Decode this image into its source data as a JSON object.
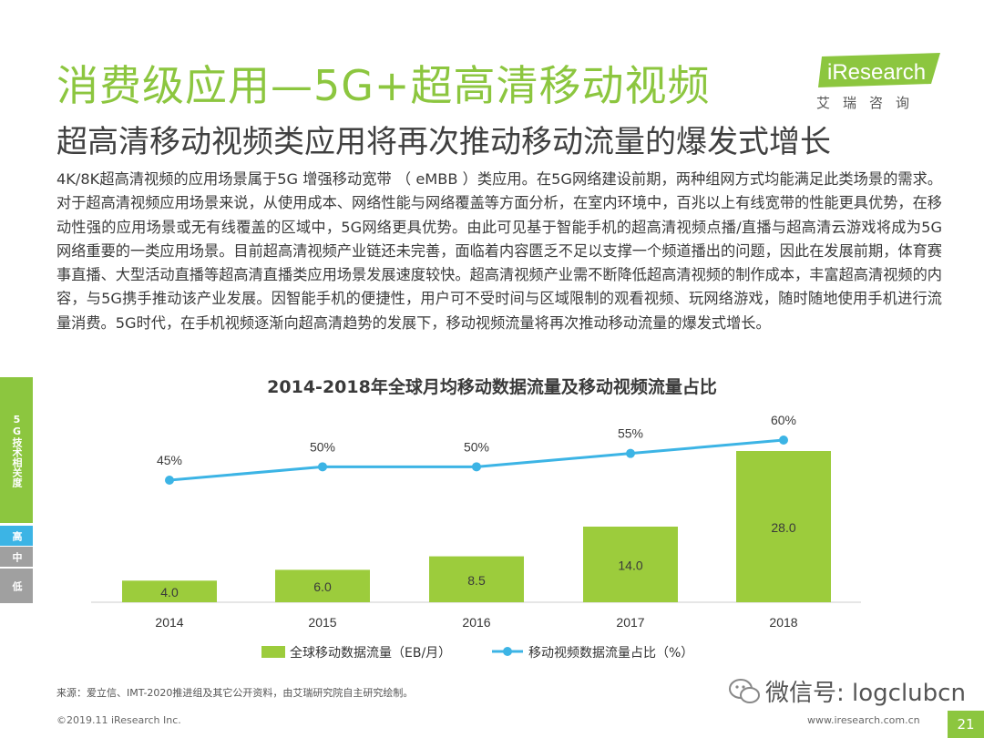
{
  "header": {
    "title": "消费级应用—5G+超高清移动视频",
    "subtitle": "超高清移动视频类应用将再次推动移动流量的爆发式增长",
    "logo_text": "iResearch",
    "logo_subtext": "艾瑞咨询"
  },
  "body_text": "4K/8K超高清视频的应用场景属于5G 增强移动宽带 （ eMBB ）类应用。在5G网络建设前期，两种组网方式均能满足此类场景的需求。对于超高清视频应用场景来说，从使用成本、网络性能与网络覆盖等方面分析，在室内环境中，百兆以上有线宽带的性能更具优势，在移动性强的应用场景或无有线覆盖的区域中，5G网络更具优势。由此可见基于智能手机的超高清视频点播/直播与超高清云游戏将成为5G网络重要的一类应用场景。目前超高清视频产业链还未完善，面临着内容匮乏不足以支撑一个频道播出的问题，因此在发展前期，体育赛事直播、大型活动直播等超高清直播类应用场景发展速度较快。超高清视频产业需不断降低超高清视频的制作成本，丰富超高清视频的内容，与5G携手推动该产业发展。因智能手机的便捷性，用户可不受时间与区域限制的观看视频、玩网络游戏，随时随地使用手机进行流量消费。5G时代，在手机视频逐渐向超高清趋势的发展下，移动视频流量将再次推动移动流量的爆发式增长。",
  "sidebar": {
    "label": "5G技术相关度",
    "levels": [
      "高",
      "中",
      "低"
    ]
  },
  "chart_data": {
    "type": "bar",
    "title": "2014-2018年全球月均移动数据流量及移动视频流量占比",
    "categories": [
      "2014",
      "2015",
      "2016",
      "2017",
      "2018"
    ],
    "series": [
      {
        "name": "全球移动数据流量（EB/月）",
        "type": "bar",
        "values": [
          4.0,
          6.0,
          8.5,
          14.0,
          28.0
        ],
        "labels": [
          "4.0",
          "6.0",
          "8.5",
          "14.0",
          "28.0"
        ],
        "color": "#9ccc3c"
      },
      {
        "name": "移动视频数据流量占比（%）",
        "type": "line",
        "values": [
          45,
          50,
          50,
          55,
          60
        ],
        "labels": [
          "45%",
          "50%",
          "50%",
          "55%",
          "60%"
        ],
        "color": "#3cb4e5"
      }
    ],
    "legend_position": "bottom",
    "grid": false
  },
  "footer": {
    "source": "来源：爱立信、IMT-2020推进组及其它公开资料，由艾瑞研究院自主研究绘制。",
    "copyright": "©2019.11 iResearch Inc.",
    "website": "www.iresearch.com.cn",
    "watermark": "微信号: logclubcn",
    "page_number": "21"
  },
  "colors": {
    "brand_green": "#8cc63f",
    "accent_blue": "#3cb4e5",
    "muted_gray": "#a0a0a0"
  }
}
